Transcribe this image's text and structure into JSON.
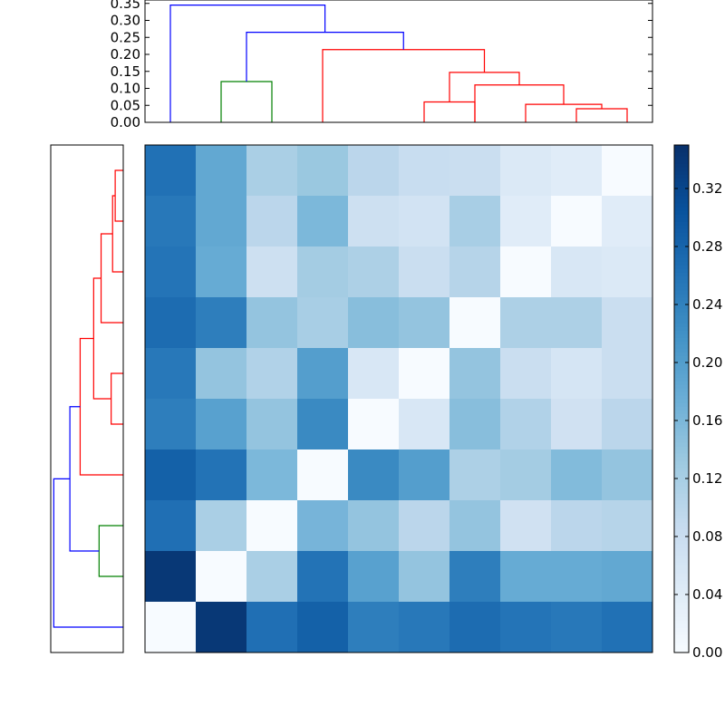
{
  "chart_data": {
    "type": "heatmap",
    "title": "",
    "xlabel": "",
    "ylabel": "",
    "colormap": "Blues",
    "n": 10,
    "matrix": [
      [
        0.263,
        0.185,
        0.118,
        0.135,
        0.1,
        0.083,
        0.08,
        0.05,
        0.04,
        0.0
      ],
      [
        0.253,
        0.185,
        0.1,
        0.16,
        0.075,
        0.065,
        0.12,
        0.04,
        0.0,
        0.04
      ],
      [
        0.258,
        0.18,
        0.075,
        0.125,
        0.115,
        0.08,
        0.105,
        0.0,
        0.055,
        0.05
      ],
      [
        0.27,
        0.245,
        0.14,
        0.12,
        0.15,
        0.14,
        0.0,
        0.115,
        0.115,
        0.08
      ],
      [
        0.253,
        0.14,
        0.11,
        0.2,
        0.055,
        0.0,
        0.14,
        0.08,
        0.06,
        0.08
      ],
      [
        0.245,
        0.195,
        0.14,
        0.23,
        0.0,
        0.055,
        0.15,
        0.11,
        0.07,
        0.1
      ],
      [
        0.285,
        0.26,
        0.16,
        0.0,
        0.23,
        0.2,
        0.115,
        0.125,
        0.155,
        0.14
      ],
      [
        0.265,
        0.118,
        0.0,
        0.165,
        0.14,
        0.1,
        0.14,
        0.07,
        0.1,
        0.105
      ],
      [
        0.34,
        0.0,
        0.118,
        0.26,
        0.195,
        0.14,
        0.245,
        0.18,
        0.18,
        0.185
      ],
      [
        0.0,
        0.34,
        0.265,
        0.285,
        0.245,
        0.253,
        0.27,
        0.258,
        0.253,
        0.263
      ]
    ],
    "colorbar": {
      "range": [
        0.0,
        0.35
      ],
      "ticks": [
        0.0,
        0.04,
        0.08,
        0.12,
        0.16,
        0.2,
        0.24,
        0.28,
        0.32
      ],
      "tick_labels": [
        "0.00",
        "0.04",
        "0.08",
        "0.12",
        "0.16",
        "0.20",
        "0.24",
        "0.28",
        "0.32"
      ]
    },
    "top_dendrogram": {
      "ylim": [
        0.0,
        0.36
      ],
      "ticks": [
        0.0,
        0.05,
        0.1,
        0.15,
        0.2,
        0.25,
        0.3,
        0.35
      ],
      "tick_labels": [
        "0.00",
        "0.05",
        "0.10",
        "0.15",
        "0.20",
        "0.25",
        "0.30",
        "0.35"
      ],
      "links": [
        {
          "l": 1.5,
          "lh": 0.0,
          "r": 2.5,
          "rh": 0.0,
          "h": 0.12,
          "color": "#008000"
        },
        {
          "l": 5.5,
          "lh": 0.0,
          "r": 6.5,
          "rh": 0.0,
          "h": 0.06,
          "color": "#ff0000"
        },
        {
          "l": 8.5,
          "lh": 0.0,
          "r": 9.5,
          "rh": 0.0,
          "h": 0.04,
          "color": "#ff0000"
        },
        {
          "l": 7.5,
          "lh": 0.0,
          "r": 9.0,
          "rh": 0.04,
          "h": 0.053,
          "color": "#ff0000"
        },
        {
          "l": 6.5,
          "lh": 0.0,
          "r": 8.25,
          "rh": 0.053,
          "h": 0.11,
          "color": "#ff0000"
        },
        {
          "l": 6.0,
          "lh": 0.06,
          "r": 7.375,
          "rh": 0.11,
          "h": 0.147,
          "color": "#ff0000"
        },
        {
          "l": 3.5,
          "lh": 0.0,
          "r": 6.6875,
          "rh": 0.147,
          "h": 0.214,
          "color": "#ff0000"
        },
        {
          "l": 2.0,
          "lh": 0.12,
          "r": 5.09375,
          "rh": 0.214,
          "h": 0.265,
          "color": "#0000ff"
        },
        {
          "l": 0.5,
          "lh": 0.0,
          "r": 3.546875,
          "rh": 0.265,
          "h": 0.345,
          "color": "#0000ff"
        }
      ]
    },
    "left_dendrogram": {
      "links": [
        {
          "l": 0.5,
          "lh": 0.0,
          "r": 1.5,
          "rh": 0.0,
          "h": 0.04,
          "color": "#ff0000"
        },
        {
          "l": 1.0,
          "lh": 0.04,
          "r": 2.5,
          "rh": 0.0,
          "h": 0.053,
          "color": "#ff0000"
        },
        {
          "l": 1.75,
          "lh": 0.053,
          "r": 3.5,
          "rh": 0.0,
          "h": 0.11,
          "color": "#ff0000"
        },
        {
          "l": 4.5,
          "lh": 0.0,
          "r": 5.5,
          "rh": 0.0,
          "h": 0.06,
          "color": "#ff0000"
        },
        {
          "l": 2.625,
          "lh": 0.11,
          "r": 5.0,
          "rh": 0.06,
          "h": 0.147,
          "color": "#ff0000"
        },
        {
          "l": 3.8125,
          "lh": 0.147,
          "r": 6.5,
          "rh": 0.0,
          "h": 0.214,
          "color": "#ff0000"
        },
        {
          "l": 7.5,
          "lh": 0.0,
          "r": 8.5,
          "rh": 0.0,
          "h": 0.12,
          "color": "#008000"
        },
        {
          "l": 5.15625,
          "lh": 0.214,
          "r": 8.0,
          "rh": 0.12,
          "h": 0.265,
          "color": "#0000ff"
        },
        {
          "l": 6.578125,
          "lh": 0.265,
          "r": 9.5,
          "rh": 0.0,
          "h": 0.345,
          "color": "#0000ff"
        }
      ]
    }
  }
}
